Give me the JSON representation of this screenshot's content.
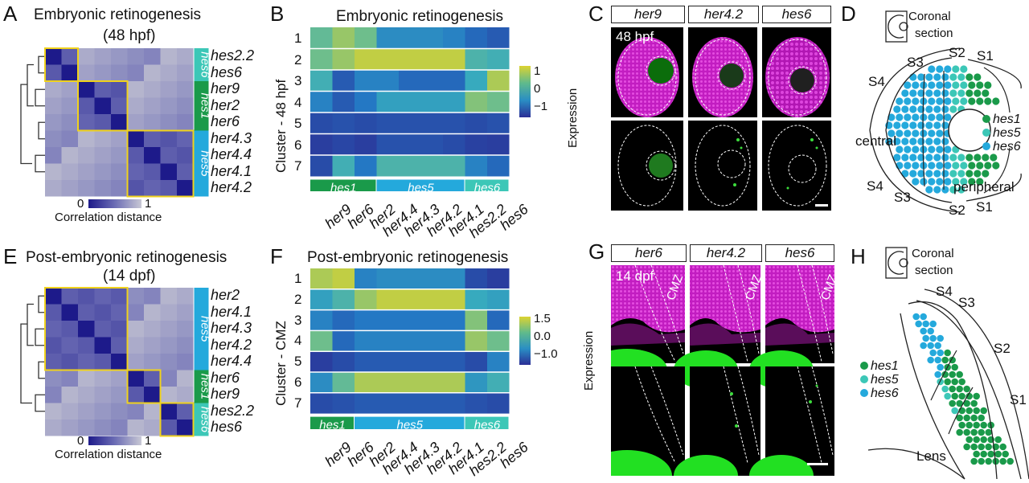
{
  "panels": {
    "A": {
      "label": "A",
      "title1": "Embryonic retinogenesis",
      "title2": "(48 hpf)",
      "genes": [
        "hes2.2",
        "hes6",
        "her9",
        "her2",
        "her6",
        "her4.3",
        "her4.4",
        "her4.1",
        "her4.2"
      ],
      "groups": [
        {
          "name": "hes6",
          "color": "#3cc7b7",
          "span": 2
        },
        {
          "name": "hes1",
          "color": "#1a9a4a",
          "span": 3
        },
        {
          "name": "hes5",
          "color": "#24a9dc",
          "span": 4
        }
      ],
      "legend_min": "0",
      "legend_max": "1",
      "legend_label": "Correlation distance"
    },
    "B": {
      "label": "B",
      "title": "Embryonic retinogenesis",
      "ylabel": "Cluster - 48 hpf",
      "clusters": [
        "1",
        "2",
        "3",
        "4",
        "5",
        "6",
        "7"
      ],
      "genes": [
        "her9",
        "her6",
        "her2",
        "her4.4",
        "her4.3",
        "her4.2",
        "her4.1",
        "hes2.2",
        "hes6"
      ],
      "groups": [
        {
          "name": "hes1",
          "color": "#1a9a4a",
          "span": 3
        },
        {
          "name": "hes5",
          "color": "#24a9dc",
          "span": 4
        },
        {
          "name": "hes6",
          "color": "#3cc7b7",
          "span": 2
        }
      ],
      "colorbar_label": "Expression",
      "colorbar_ticks": [
        "1",
        "0",
        "−1"
      ]
    },
    "C": {
      "label": "C",
      "headers": [
        "her9",
        "her4.2",
        "hes6"
      ],
      "stage": "48 hpf"
    },
    "D": {
      "label": "D",
      "coronal1": "Coronal",
      "coronal2": "section",
      "zones": [
        "S3",
        "S2",
        "S1",
        "S4",
        "S4",
        "S3",
        "S2",
        "S1"
      ],
      "central": "central",
      "peripheral": "peripheral",
      "legend": [
        {
          "name": "hes1",
          "color": "#1a9a4a"
        },
        {
          "name": "hes5",
          "color": "#3cc7b7"
        },
        {
          "name": "hes6",
          "color": "#24a9dc"
        }
      ]
    },
    "E": {
      "label": "E",
      "title1": "Post-embryonic retinogenesis",
      "title2": "(14 dpf)",
      "genes": [
        "her2",
        "her4.1",
        "her4.3",
        "her4.2",
        "her4.4",
        "her6",
        "her9",
        "hes2.2",
        "hes6"
      ],
      "groups": [
        {
          "name": "hes5",
          "color": "#24a9dc",
          "span": 5
        },
        {
          "name": "hes1",
          "color": "#1a9a4a",
          "span": 2
        },
        {
          "name": "hes6",
          "color": "#3cc7b7",
          "span": 2
        }
      ],
      "legend_min": "0",
      "legend_max": "1",
      "legend_label": "Correlation distance"
    },
    "F": {
      "label": "F",
      "title": "Post-embryonic retinogenesis",
      "ylabel": "Cluster - CMZ",
      "clusters": [
        "1",
        "2",
        "3",
        "4",
        "5",
        "6",
        "7"
      ],
      "genes": [
        "her9",
        "her6",
        "her2",
        "her4.4",
        "her4.3",
        "her4.2",
        "her4.1",
        "hes2.2",
        "hes6"
      ],
      "groups": [
        {
          "name": "hes1",
          "color": "#1a9a4a",
          "span": 2
        },
        {
          "name": "hes5",
          "color": "#24a9dc",
          "span": 5
        },
        {
          "name": "hes6",
          "color": "#3cc7b7",
          "span": 2
        }
      ],
      "colorbar_label": "Expression",
      "colorbar_ticks": [
        "1.5",
        "0.0",
        "−1.0"
      ]
    },
    "G": {
      "label": "G",
      "headers": [
        "her6",
        "her4.2",
        "hes6"
      ],
      "stage": "14 dpf",
      "region": "CMZ"
    },
    "H": {
      "label": "H",
      "coronal1": "Coronal",
      "coronal2": "section",
      "zones": [
        "S4",
        "S3",
        "S2",
        "S1"
      ],
      "lens": "Lens",
      "legend": [
        {
          "name": "hes1",
          "color": "#1a9a4a"
        },
        {
          "name": "hes5",
          "color": "#3cc7b7"
        },
        {
          "name": "hes6",
          "color": "#24a9dc"
        }
      ]
    }
  }
}
